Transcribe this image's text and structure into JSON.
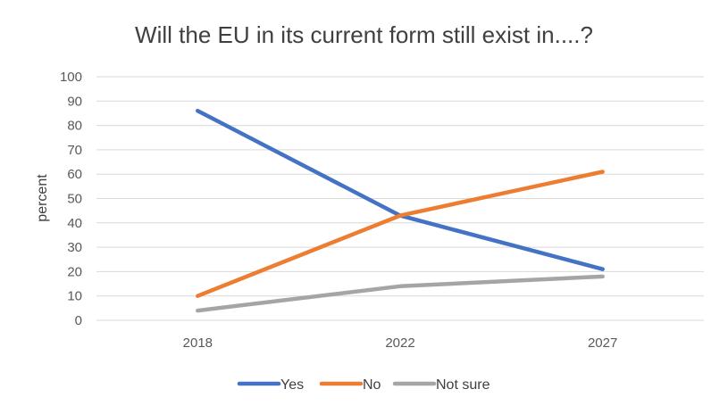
{
  "chart_data": {
    "type": "line",
    "title": "Will the EU in its current form still exist in....?",
    "xlabel": "",
    "ylabel": "percent",
    "categories": [
      "2018",
      "2022",
      "2027"
    ],
    "ylim": [
      0,
      100
    ],
    "yticks": [
      0,
      10,
      20,
      30,
      40,
      50,
      60,
      70,
      80,
      90,
      100
    ],
    "grid": true,
    "legend_position": "bottom",
    "series": [
      {
        "name": "Yes",
        "color": "#4472C4",
        "values": [
          86,
          43,
          21
        ]
      },
      {
        "name": "No",
        "color": "#ED7D31",
        "values": [
          10,
          43,
          61
        ]
      },
      {
        "name": "Not sure",
        "color": "#A5A5A5",
        "values": [
          4,
          14,
          18
        ]
      }
    ]
  }
}
